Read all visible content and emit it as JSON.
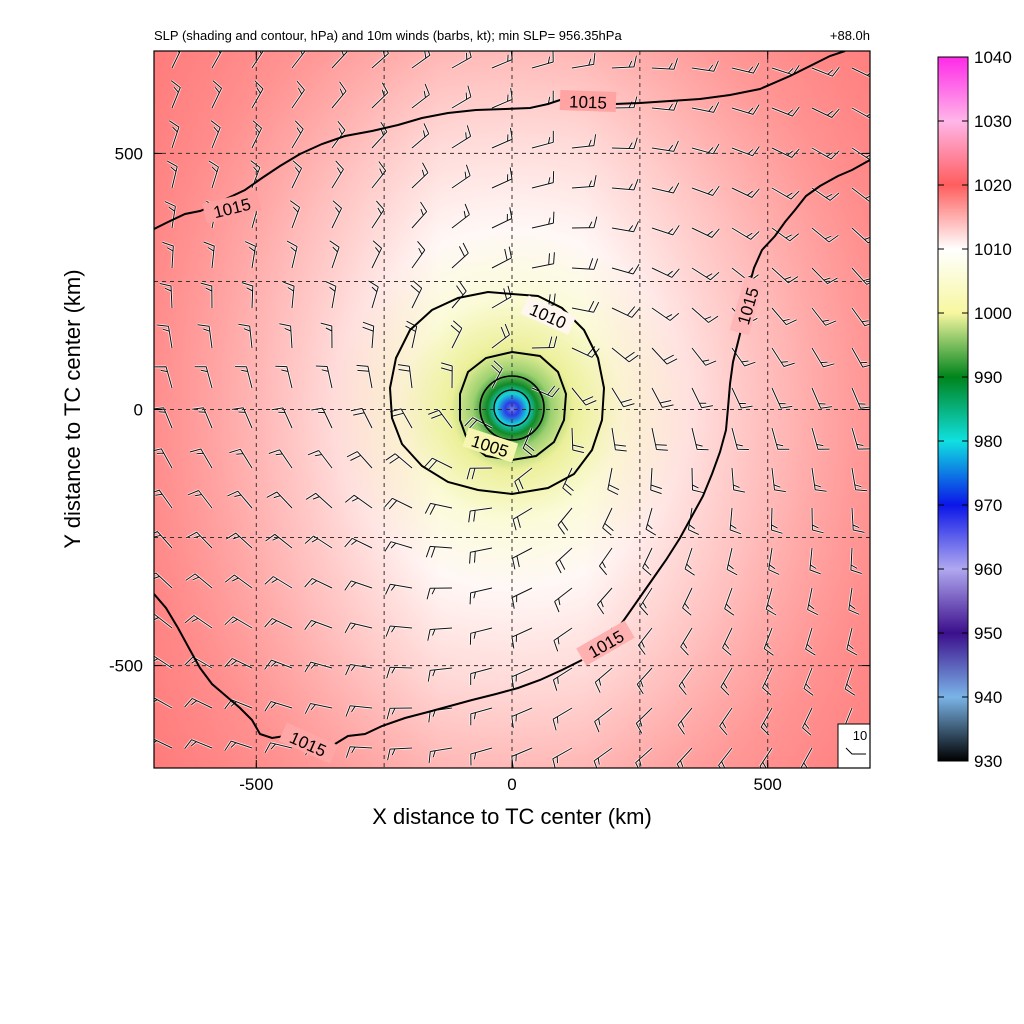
{
  "chart_data": {
    "type": "heatmap",
    "title": "SLP (shading and contour, hPa) and 10m winds (barbs, kt); min SLP= 956.35hPa",
    "forecast_hour": "+88.0h",
    "xlabel": "X distance to TC center (km)",
    "ylabel": "Y distance to TC center (km)",
    "xlim": [
      -700,
      700
    ],
    "ylim": [
      -700,
      700
    ],
    "xticks": [
      -500,
      0,
      500
    ],
    "yticks": [
      -500,
      0,
      500
    ],
    "grid": "dashed, every 250 km",
    "min_slp": 956.35,
    "colorbar": {
      "ticks": [
        1040,
        1030,
        1020,
        1010,
        1000,
        990,
        980,
        970,
        960,
        950,
        940,
        930
      ],
      "range": [
        930,
        1040
      ],
      "stops": [
        {
          "value": 930,
          "color": "#000000"
        },
        {
          "value": 940,
          "color": "#7ab4e8"
        },
        {
          "value": 950,
          "color": "#3c0f8c"
        },
        {
          "value": 960,
          "color": "#b0a8f0"
        },
        {
          "value": 970,
          "color": "#0b16e8"
        },
        {
          "value": 980,
          "color": "#10e0e0"
        },
        {
          "value": 990,
          "color": "#00841c"
        },
        {
          "value": 1000,
          "color": "#f7f7a0"
        },
        {
          "value": 1010,
          "color": "#ffffff"
        },
        {
          "value": 1020,
          "color": "#ff5e5e"
        },
        {
          "value": 1030,
          "color": "#ffb6e8"
        },
        {
          "value": 1040,
          "color": "#ff2ae8"
        }
      ]
    },
    "contours": [
      {
        "level": 1005,
        "label": "1005",
        "approx_radius_km": 110
      },
      {
        "level": 1010,
        "label": "1010",
        "approx_radius_km": 230
      },
      {
        "level": 1015,
        "label": "1015"
      }
    ],
    "wind_reference": {
      "label": "10",
      "units": "kt"
    }
  }
}
